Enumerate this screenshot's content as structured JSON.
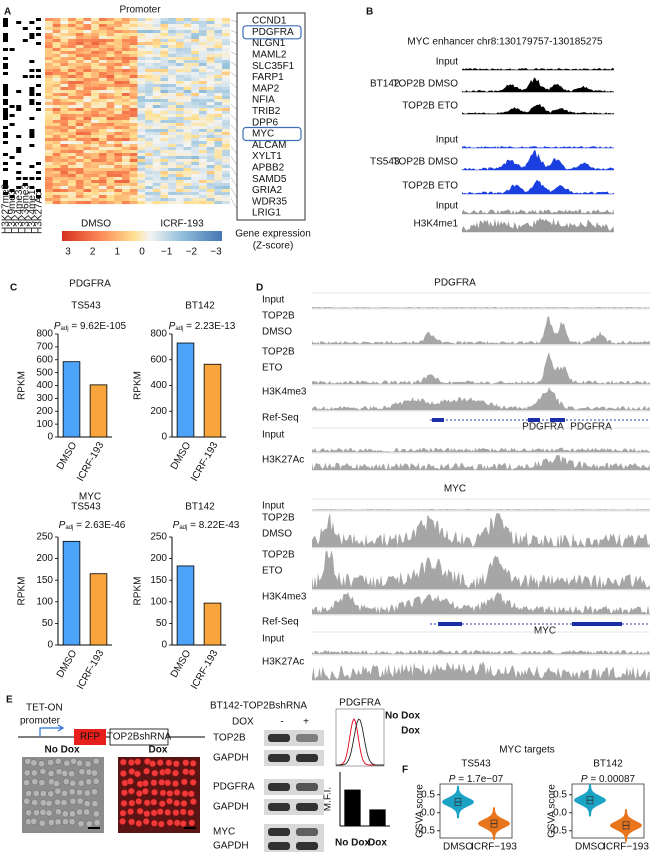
{
  "panel_labels": [
    "A",
    "B",
    "C",
    "D",
    "E",
    "F"
  ],
  "panel_a": {
    "title": "Promoter",
    "marks": [
      "H3K27me3",
      "H3K9me3",
      "H3K4me3",
      "H3K36me3",
      "H3K4me1",
      "H3K27Ac"
    ],
    "genes": [
      "CCND1",
      "PDGFRA",
      "NLGN1",
      "MAML2",
      "SLC35F1",
      "FARP1",
      "MAP2",
      "NFIA",
      "TRIB2",
      "DPP6",
      "MYC",
      "ALCAM",
      "XYLT1",
      "APBB2",
      "SAMD5",
      "GRIA2",
      "WDR35",
      "LRIG1"
    ],
    "legend": [
      "DMSO",
      "ICRF-193"
    ],
    "colorbar_ticks": [
      3,
      2,
      1,
      0,
      {
        "value": -1,
        "label": "−1"
      },
      {
        "value": -2,
        "label": "−2"
      },
      {
        "value": -3,
        "label": "−3"
      }
    ],
    "colorbar_label": [
      "Gene expression",
      "(Z-score)"
    ]
  },
  "panel_b": {
    "title": "MYC enhancer chr8:130179757-130185275",
    "groups": [
      {
        "name": "BT142",
        "tracks": [
          "Input",
          "TOP2B DMSO",
          "TOP2B ETO"
        ]
      },
      {
        "name": "TS543",
        "tracks": [
          "Input",
          "TOP2B DMSO",
          "TOP2B ETO"
        ]
      },
      {
        "tracks": [
          "Input",
          "H3K4me1"
        ]
      }
    ]
  },
  "panel_c": {
    "rows": [
      "PDGFRA",
      "MYC"
    ]
  },
  "panel_d": {
    "loci": [
      {
        "title": "PDGFRA",
        "tracks": [
          [
            "Input"
          ],
          [
            "TOP2B",
            "DMSO"
          ],
          [
            "TOP2B",
            "ETO"
          ],
          [
            "H3K4me3"
          ],
          [
            "Ref-Seq"
          ],
          [
            "Input"
          ],
          [
            "H3K27Ac"
          ]
        ],
        "genes": [
          "PDGFRA",
          "PDGFRA"
        ]
      },
      {
        "title": "MYC",
        "tracks": [
          [
            "Input"
          ],
          [
            "TOP2B",
            "DMSO"
          ],
          [
            "TOP2B",
            "ETO"
          ],
          [
            "H3K4me3"
          ],
          [
            "Ref-Seq"
          ],
          [
            "Input"
          ],
          [
            "H3K27Ac"
          ]
        ],
        "genes": [
          "MYC"
        ]
      }
    ]
  },
  "panel_e": {
    "construct": [
      "TET-ON",
      "promoter",
      "RFP",
      "TOP2BshRNA"
    ],
    "images": [
      "No Dox",
      "Dox"
    ],
    "blot_title": "BT142-TOP2BshRNA",
    "blot_condition": "DOX",
    "blot_lanes": [
      "-",
      "+"
    ],
    "blot_rows": [
      "TOP2B",
      "GAPDH",
      "PDGFRA",
      "GAPDH",
      "MYC",
      "GAPDH"
    ],
    "flow_title": "PDGFRA",
    "flow_legend": [
      "No Dox",
      "Dox"
    ]
  },
  "panel_f": {
    "title": "MYC targets"
  },
  "chart_data": [
    {
      "type": "bar",
      "title": "TS543",
      "annotation": {
        "symbol": "P",
        "subscript": "adj",
        "text": " = 9.62E-105"
      },
      "y_label": "RPKM",
      "categories": [
        "DMSO",
        "ICRF-193"
      ],
      "values": [
        585,
        405
      ],
      "colors": [
        "#4da3f7",
        "#f7a53c"
      ],
      "ylim": [
        0,
        800
      ],
      "yticks": [
        0,
        100,
        200,
        300,
        400,
        500,
        600,
        700,
        800
      ]
    },
    {
      "type": "bar",
      "title": "BT142",
      "annotation": {
        "symbol": "P",
        "subscript": "adj",
        "text": " = 2.23E-13"
      },
      "y_label": "RPKM",
      "categories": [
        "DMSO",
        "ICRF-193"
      ],
      "values": [
        730,
        565
      ],
      "colors": [
        "#4da3f7",
        "#f7a53c"
      ],
      "ylim": [
        0,
        800
      ],
      "yticks": [
        0,
        200,
        400,
        600,
        800
      ]
    },
    {
      "type": "bar",
      "title": "TS543",
      "annotation": {
        "symbol": "P",
        "subscript": "adj",
        "text": " = 2.63E-46"
      },
      "y_label": "RPKM",
      "categories": [
        "DMSO",
        "ICRF-193"
      ],
      "values": [
        240,
        165
      ],
      "colors": [
        "#4da3f7",
        "#f7a53c"
      ],
      "ylim": [
        0,
        250
      ],
      "yticks": [
        0,
        50,
        100,
        150,
        200,
        250
      ]
    },
    {
      "type": "bar",
      "title": "BT142",
      "annotation": {
        "symbol": "P",
        "subscript": "adj",
        "text": " = 8.22E-43"
      },
      "y_label": "RPKM",
      "categories": [
        "DMSO",
        "ICRF-193"
      ],
      "values": [
        183,
        97
      ],
      "colors": [
        "#4da3f7",
        "#f7a53c"
      ],
      "ylim": [
        0,
        250
      ],
      "yticks": [
        0,
        50,
        100,
        150,
        200,
        250
      ]
    },
    {
      "type": "bar",
      "y_label": "M.F.I.",
      "categories": [
        "No Dox",
        "Dox"
      ],
      "values": [
        1.0,
        0.45
      ],
      "colors": [
        "#000000",
        "#000000"
      ],
      "category_colors": [
        "#000000",
        "#e3001b"
      ],
      "ylim": [
        0,
        1.5
      ]
    },
    {
      "type": "violin",
      "title": "TS543",
      "annotation": {
        "symbol": "P",
        "text": " = 1.7e−07"
      },
      "y_label": "GSVA score",
      "categories": [
        "DMSO",
        "ICRF−193"
      ],
      "values": [
        0.3,
        -0.3
      ],
      "colors": [
        "#1ba3c6",
        "#e8741c"
      ],
      "ylim": [
        -0.7,
        0.8
      ],
      "yticks": [
        {
          "value": -0.5,
          "label": "−0.5"
        },
        {
          "value": 0,
          "label": "0.0"
        },
        0.5
      ]
    },
    {
      "type": "violin",
      "title": "BT142",
      "annotation": {
        "symbol": "P",
        "text": " = 0.00087"
      },
      "y_label": "GSVA score",
      "categories": [
        "DMSO",
        "ICRF−193"
      ],
      "values": [
        0.35,
        -0.35
      ],
      "colors": [
        "#1ba3c6",
        "#e8741c"
      ],
      "ylim": [
        -0.7,
        0.8
      ],
      "yticks": [
        {
          "value": -0.5,
          "label": "−0.5"
        },
        {
          "value": 0,
          "label": "0.0"
        },
        0.5
      ]
    }
  ]
}
